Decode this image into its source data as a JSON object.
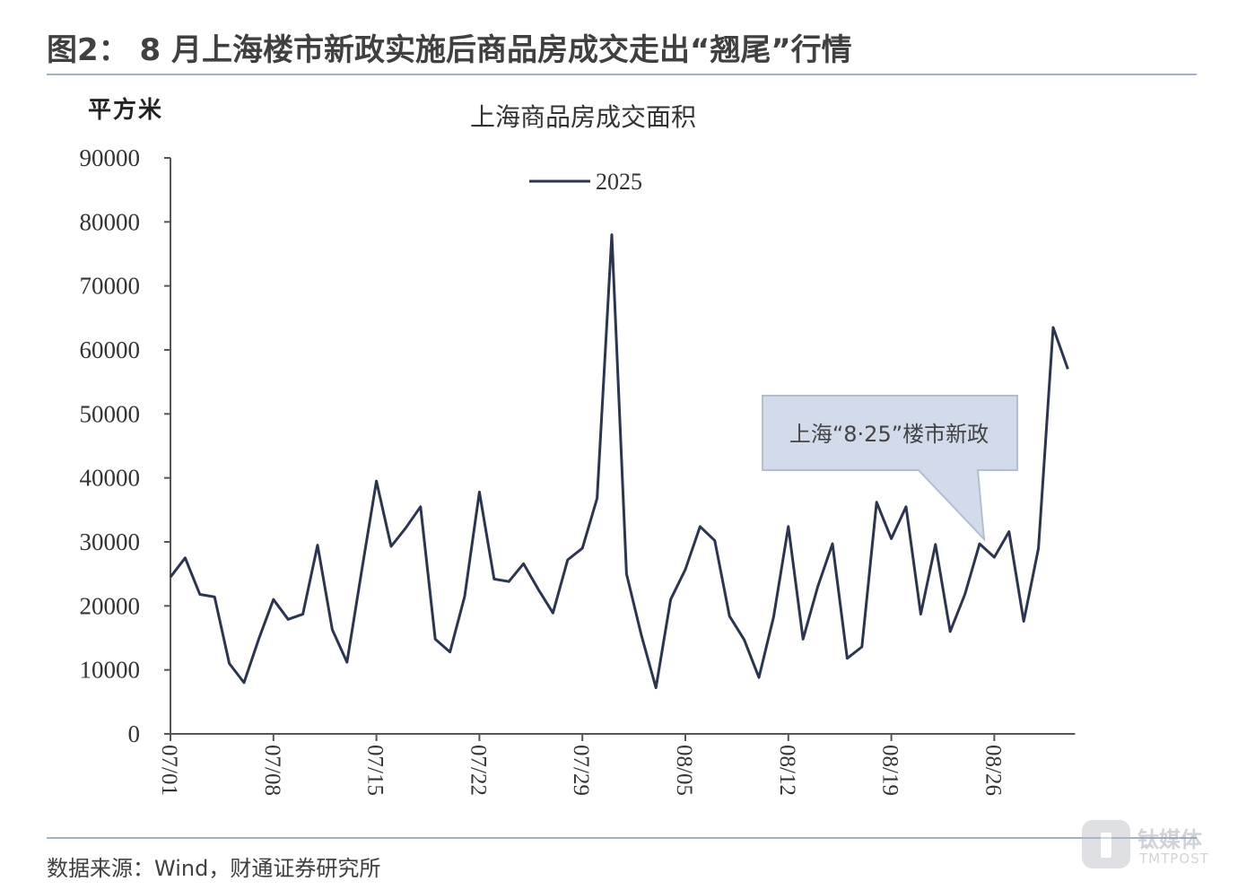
{
  "figure": {
    "title": "图2： 8 月上海楼市新政实施后商品房成交走出“翘尾”行情",
    "unit_label": "平方米",
    "source": "数据来源：Wind，财通证券研究所"
  },
  "watermark": {
    "cn": "钛媒体",
    "en": "TMTPOST"
  },
  "chart_data": {
    "type": "line",
    "title": "上海商品房成交面积",
    "ylabel": "平方米",
    "xlabel": "",
    "ylim": [
      0,
      90000
    ],
    "yticks": [
      0,
      10000,
      20000,
      30000,
      40000,
      50000,
      60000,
      70000,
      80000,
      90000
    ],
    "xtick_labels": [
      "07/01",
      "07/08",
      "07/15",
      "07/22",
      "07/29",
      "08/05",
      "08/12",
      "08/19",
      "08/26"
    ],
    "legend": {
      "position": "top-center"
    },
    "grid": false,
    "colors": {
      "line": "#2b3550",
      "axis": "#555555"
    },
    "x": [
      "07/01",
      "07/02",
      "07/03",
      "07/04",
      "07/05",
      "07/06",
      "07/07",
      "07/08",
      "07/09",
      "07/10",
      "07/11",
      "07/12",
      "07/13",
      "07/14",
      "07/15",
      "07/16",
      "07/17",
      "07/18",
      "07/19",
      "07/20",
      "07/21",
      "07/22",
      "07/23",
      "07/24",
      "07/25",
      "07/26",
      "07/27",
      "07/28",
      "07/29",
      "07/30",
      "07/31",
      "08/01",
      "08/02",
      "08/03",
      "08/04",
      "08/05",
      "08/06",
      "08/07",
      "08/08",
      "08/09",
      "08/10",
      "08/11",
      "08/12",
      "08/13",
      "08/14",
      "08/15",
      "08/16",
      "08/17",
      "08/18",
      "08/19",
      "08/20",
      "08/21",
      "08/22",
      "08/23",
      "08/24",
      "08/25",
      "08/26",
      "08/27",
      "08/28",
      "08/29",
      "08/30",
      "08/31"
    ],
    "series": [
      {
        "name": "2025",
        "values": [
          24500,
          27500,
          21800,
          21400,
          11000,
          8000,
          14800,
          21000,
          17900,
          18700,
          29500,
          16300,
          11200,
          25500,
          39500,
          29300,
          32200,
          35500,
          14800,
          12800,
          21500,
          37800,
          24200,
          23800,
          26600,
          22600,
          18900,
          27200,
          29000,
          36800,
          78000,
          25000,
          15500,
          7200,
          21000,
          25700,
          32400,
          30200,
          18400,
          14700,
          8800,
          18300,
          32400,
          14800,
          23000,
          29700,
          11800,
          13600,
          36200,
          30500,
          35500,
          18700,
          29600,
          16000,
          21800,
          29700,
          27600,
          31600,
          17600,
          29000,
          63500,
          57000
        ]
      }
    ],
    "annotations": [
      {
        "text": "上海“8·25”楼市新政",
        "x": "08/25",
        "y": 29700
      }
    ]
  }
}
